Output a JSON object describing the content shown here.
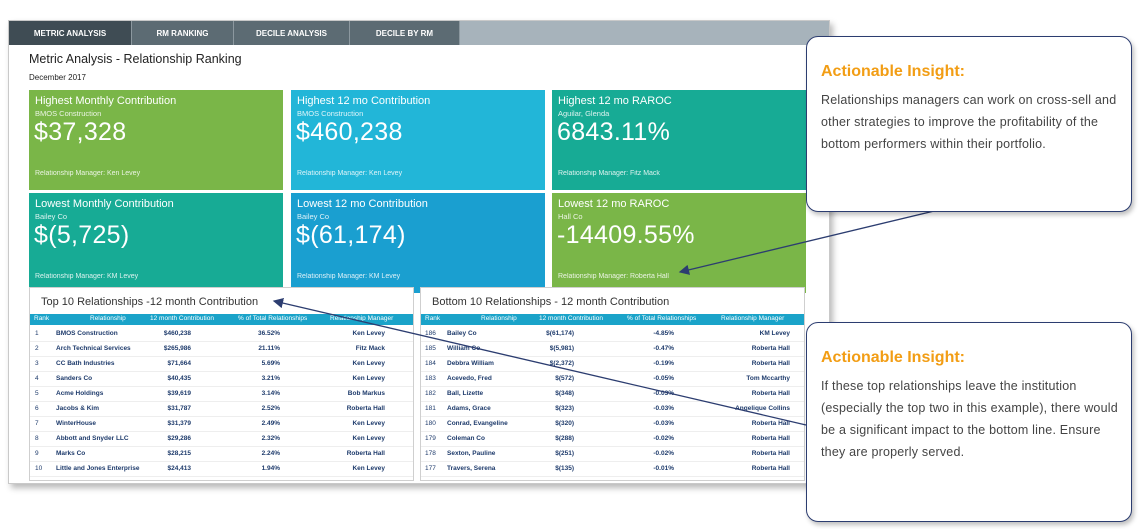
{
  "tabs": [
    "METRIC ANALYSIS",
    "RM RANKING",
    "DECILE ANALYSIS",
    "DECILE BY RM"
  ],
  "page": {
    "title": "Metric Analysis - Relationship Ranking",
    "date": "December 2017"
  },
  "cards": [
    {
      "title": "Highest Monthly Contribution",
      "subtitle": "BMOS Construction",
      "value": "$37,328",
      "manager": "Relationship Manager: Ken Levey",
      "color": "#7ab648"
    },
    {
      "title": "Highest 12 mo Contribution",
      "subtitle": "BMOS Construction",
      "value": "$460,238",
      "manager": "Relationship Manager: Ken Levey",
      "color": "#22b6d8"
    },
    {
      "title": "Highest 12 mo RAROC",
      "subtitle": "Aguilar, Glenda",
      "value": "6843.11%",
      "manager": "Relationship Manager: Fitz Mack",
      "color": "#17ab95"
    },
    {
      "title": "Lowest Monthly Contribution",
      "subtitle": "Bailey Co",
      "value": "$(5,725)",
      "manager": "Relationship Manager: KM Levey",
      "color": "#17ab95"
    },
    {
      "title": "Lowest 12 mo Contribution",
      "subtitle": "Bailey Co",
      "value": "$(61,174)",
      "manager": "Relationship Manager: KM Levey",
      "color": "#1a9fd0"
    },
    {
      "title": "Lowest 12 mo RAROC",
      "subtitle": "Hall Co",
      "value": "-14409.55%",
      "manager": "Relationship Manager: Roberta Hall",
      "color": "#7ab648"
    }
  ],
  "columns": [
    "Rank",
    "Relationship",
    "12 month Contribution",
    "% of Total Relationships",
    "Relationship Manager"
  ],
  "top10": {
    "title": "Top 10 Relationships -12 month Contribution",
    "rows": [
      [
        "1",
        "BMOS Construction",
        "$460,238",
        "36.52%",
        "Ken Levey"
      ],
      [
        "2",
        "Arch Technical Services",
        "$265,986",
        "21.11%",
        "Fitz Mack"
      ],
      [
        "3",
        "CC Bath Industries",
        "$71,664",
        "5.69%",
        "Ken Levey"
      ],
      [
        "4",
        "Sanders Co",
        "$40,435",
        "3.21%",
        "Ken Levey"
      ],
      [
        "5",
        "Acme Holdings",
        "$39,619",
        "3.14%",
        "Bob Markus"
      ],
      [
        "6",
        "Jacobs & Kim",
        "$31,787",
        "2.52%",
        "Roberta Hall"
      ],
      [
        "7",
        "WinterHouse",
        "$31,379",
        "2.49%",
        "Ken Levey"
      ],
      [
        "8",
        "Abbott and Snyder LLC",
        "$29,286",
        "2.32%",
        "Ken Levey"
      ],
      [
        "9",
        "Marks Co",
        "$28,215",
        "2.24%",
        "Roberta Hall"
      ],
      [
        "10",
        "Little and Jones Enterprise",
        "$24,413",
        "1.94%",
        "Ken Levey"
      ]
    ]
  },
  "bottom10": {
    "title": "Bottom 10 Relationships - 12 month Contribution",
    "rows": [
      [
        "186",
        "Bailey Co",
        "$(61,174)",
        "-4.85%",
        "KM Levey"
      ],
      [
        "185",
        "William Co",
        "$(5,981)",
        "-0.47%",
        "Roberta Hall"
      ],
      [
        "184",
        "Debbra William",
        "$(2,372)",
        "-0.19%",
        "Roberta Hall"
      ],
      [
        "183",
        "Acevedo, Fred",
        "$(572)",
        "-0.05%",
        "Tom Mccarthy"
      ],
      [
        "182",
        "Ball, Lizette",
        "$(348)",
        "-0.03%",
        "Roberta Hall"
      ],
      [
        "181",
        "Adams, Grace",
        "$(323)",
        "-0.03%",
        "Angelique Collins"
      ],
      [
        "180",
        "Conrad, Evangeline",
        "$(320)",
        "-0.03%",
        "Roberta Hall"
      ],
      [
        "179",
        "Coleman Co",
        "$(288)",
        "-0.02%",
        "Roberta Hall"
      ],
      [
        "178",
        "Sexton, Pauline",
        "$(251)",
        "-0.02%",
        "Roberta Hall"
      ],
      [
        "177",
        "Travers, Serena",
        "$(135)",
        "-0.01%",
        "Roberta Hall"
      ]
    ]
  },
  "callouts": [
    {
      "heading": "Actionable Insight:",
      "body": "Relationships managers can work on cross-sell and other strategies to improve the profitability of the bottom performers within their portfolio."
    },
    {
      "heading": "Actionable Insight:",
      "body": "If these top relationships leave the institution (especially the top two in this example), there would be a significant impact to the bottom line. Ensure they are properly served."
    }
  ],
  "colors": {
    "accent_orange": "#f29d14",
    "callout_border": "#2c3d70",
    "table_header": "#1aa3c9",
    "tab_active": "#3f4c54"
  }
}
